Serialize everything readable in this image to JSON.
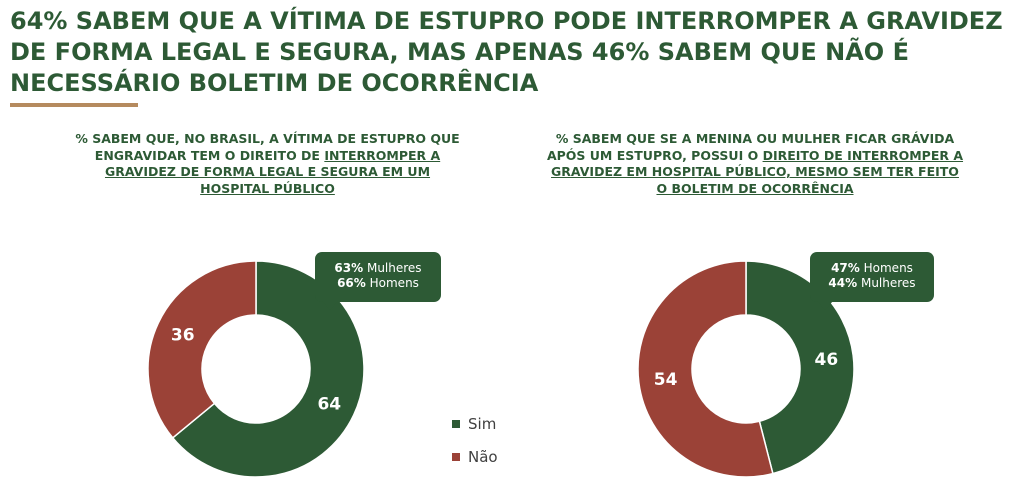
{
  "headline": "64% SABEM QUE A VÍTIMA DE ESTUPRO PODE INTERROMPER A GRAVIDEZ DE FORMA LEGAL E SEGURA, MAS APENAS 46% SABEM QUE NÃO É NECESSÁRIO BOLETIM DE OCORRÊNCIA",
  "colors": {
    "sim": "#2d5a35",
    "nao": "#9b4237",
    "headline": "#2d5a35",
    "rule": "#b58a5e"
  },
  "legend": {
    "sim": "Sim",
    "nao": "Não",
    "placement": "center-bottom"
  },
  "chart_data": [
    {
      "type": "pie",
      "style": "donut",
      "title_parts": {
        "plain": "% SABEM QUE, NO BRASIL, A VÍTIMA DE ESTUPRO QUE ENGRAVIDAR TEM O DIREITO DE",
        "underlined": "INTERROMPER A GRAVIDEZ DE FORMA LEGAL E SEGURA EM UM HOSPITAL PÚBLICO"
      },
      "slices": [
        {
          "label": "Sim",
          "value": 64,
          "display": "64"
        },
        {
          "label": "Não",
          "value": 36,
          "display": "36"
        }
      ],
      "callout": [
        {
          "value": "63%",
          "label": " Mulheres"
        },
        {
          "value": "66%",
          "label": " Homens"
        }
      ]
    },
    {
      "type": "pie",
      "style": "donut",
      "title_parts": {
        "plain": "% SABEM QUE SE A MENINA OU MULHER FICAR GRÁVIDA APÓS UM ESTUPRO, POSSUI O",
        "underlined": "DIREITO DE INTERROMPER A GRAVIDEZ EM HOSPITAL PÚBLICO, MESMO SEM TER FEITO O BOLETIM DE OCORRÊNCIA"
      },
      "slices": [
        {
          "label": "Sim",
          "value": 46,
          "display": "46"
        },
        {
          "label": "Não",
          "value": 54,
          "display": "54"
        }
      ],
      "callout": [
        {
          "value": "47%",
          "label": " Homens"
        },
        {
          "value": "44%",
          "label": " Mulheres"
        }
      ]
    }
  ]
}
